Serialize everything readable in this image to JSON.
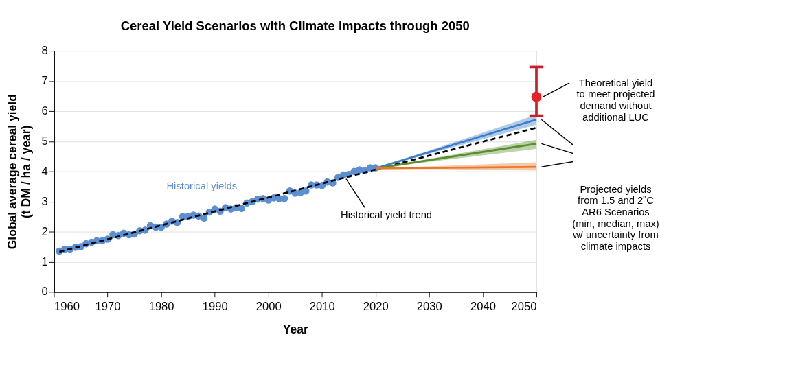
{
  "chart_data": {
    "type": "scatter",
    "title": "Cereal Yield Scenarios with Climate Impacts through 2050",
    "xlabel": "Year",
    "ylabel": "Global average cereal yield\n(t DM / ha / year)",
    "xlim": [
      1960,
      2050
    ],
    "xticks": [
      1960,
      1970,
      1980,
      1990,
      2000,
      2010,
      2020,
      2030,
      2040,
      2050
    ],
    "ylim": [
      0,
      8
    ],
    "yticks": [
      0,
      1,
      2,
      3,
      4,
      5,
      6,
      7,
      8
    ],
    "grid": "y",
    "series": [
      {
        "name": "Historical yields",
        "marker": "circle",
        "color": "#5b8fd0",
        "x": [
          1961,
          1962,
          1963,
          1964,
          1965,
          1966,
          1967,
          1968,
          1969,
          1970,
          1971,
          1972,
          1973,
          1974,
          1975,
          1976,
          1977,
          1978,
          1979,
          1980,
          1981,
          1982,
          1983,
          1984,
          1985,
          1986,
          1987,
          1988,
          1989,
          1990,
          1991,
          1992,
          1993,
          1994,
          1995,
          1996,
          1997,
          1998,
          1999,
          2000,
          2001,
          2002,
          2003,
          2004,
          2005,
          2006,
          2007,
          2008,
          2009,
          2010,
          2011,
          2012,
          2013,
          2014,
          2015,
          2016,
          2017,
          2018,
          2019,
          2020
        ],
        "values": [
          1.35,
          1.42,
          1.42,
          1.48,
          1.5,
          1.6,
          1.65,
          1.7,
          1.7,
          1.75,
          1.9,
          1.87,
          1.95,
          1.9,
          1.92,
          2.03,
          2.05,
          2.2,
          2.15,
          2.15,
          2.25,
          2.35,
          2.3,
          2.5,
          2.5,
          2.55,
          2.52,
          2.45,
          2.65,
          2.75,
          2.68,
          2.8,
          2.75,
          2.8,
          2.77,
          2.95,
          3.0,
          3.08,
          3.1,
          3.05,
          3.12,
          3.1,
          3.1,
          3.35,
          3.28,
          3.3,
          3.35,
          3.55,
          3.55,
          3.53,
          3.65,
          3.62,
          3.8,
          3.88,
          3.9,
          4.0,
          4.05,
          4.02,
          4.12,
          4.12
        ]
      },
      {
        "name": "Historical yield trend",
        "type": "line",
        "line_style": "dashed",
        "color": "#000000",
        "x": [
          1961,
          2050
        ],
        "values": [
          1.33,
          5.45
        ]
      },
      {
        "type": "line",
        "line_style": "solid",
        "color": "#3a7dc9",
        "x": [
          2020,
          2050
        ],
        "values": [
          4.1,
          5.72
        ],
        "lower": [
          4.1,
          5.55
        ],
        "upper": [
          4.1,
          5.88
        ]
      },
      {
        "type": "line",
        "line_style": "solid",
        "color": "#5b8f2e",
        "x": [
          2020,
          2050
        ],
        "values": [
          4.1,
          4.92
        ],
        "lower": [
          4.1,
          4.75
        ],
        "upper": [
          4.1,
          5.05
        ]
      },
      {
        "type": "line",
        "line_style": "solid",
        "color": "#e8782a",
        "x": [
          2020,
          2050
        ],
        "values": [
          4.1,
          4.15
        ],
        "lower": [
          4.1,
          4.03
        ],
        "upper": [
          4.1,
          4.3
        ]
      },
      {
        "marker": "circle",
        "color": "#e8202a",
        "x": [
          2050
        ],
        "values": [
          6.47
        ],
        "errors": [
          [
            5.85,
            7.47
          ]
        ]
      }
    ],
    "annotations": [
      "Theoretical yield\nto meet projected\ndemand without\nadditional LUC",
      "Projected yields\nfrom 1.5 and 2˚C\nAR6 Scenarios\n(min, median, max)\nw/ uncertainty from\nclimate impacts"
    ]
  }
}
